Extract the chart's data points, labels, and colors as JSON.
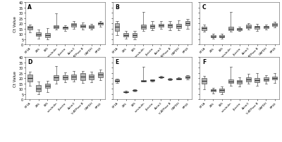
{
  "panel_labels": [
    "A",
    "B",
    "C",
    "D",
    "E",
    "F"
  ],
  "x_labels": [
    "EF1A",
    "28S",
    "18S",
    "α-tubulin",
    "β-actin",
    "Actin3",
    "V-ATPase B",
    "GAPDH",
    "RPS9"
  ],
  "ylabel": "Ct Value",
  "ylim": [
    0,
    40
  ],
  "yticks": [
    0,
    5,
    10,
    15,
    20,
    25,
    30,
    35,
    40
  ],
  "panels": {
    "A": {
      "data": [
        {
          "q1": 14.0,
          "median": 16.0,
          "q3": 17.5,
          "whislo": 11.5,
          "whishi": 18.5,
          "fliers": []
        },
        {
          "q1": 8.0,
          "median": 9.5,
          "q3": 11.5,
          "whislo": 5.5,
          "whishi": 14.0,
          "fliers": []
        },
        {
          "q1": 7.0,
          "median": 8.5,
          "q3": 10.5,
          "whislo": 4.5,
          "whishi": 15.5,
          "fliers": []
        },
        {
          "q1": 15.5,
          "median": 17.0,
          "q3": 18.0,
          "whislo": 14.0,
          "whishi": 29.5,
          "fliers": []
        },
        {
          "q1": 14.5,
          "median": 16.0,
          "q3": 17.0,
          "whislo": 13.0,
          "whishi": 18.0,
          "fliers": []
        },
        {
          "q1": 16.5,
          "median": 18.5,
          "q3": 20.0,
          "whislo": 15.0,
          "whishi": 22.0,
          "fliers": []
        },
        {
          "q1": 16.0,
          "median": 17.5,
          "q3": 19.0,
          "whislo": 14.0,
          "whishi": 20.5,
          "fliers": []
        },
        {
          "q1": 15.5,
          "median": 17.0,
          "q3": 18.0,
          "whislo": 14.0,
          "whishi": 19.5,
          "fliers": []
        },
        {
          "q1": 18.5,
          "median": 20.0,
          "q3": 21.0,
          "whislo": 17.0,
          "whishi": 22.0,
          "fliers": []
        }
      ]
    },
    "B": {
      "data": [
        {
          "q1": 13.0,
          "median": 16.5,
          "q3": 20.0,
          "whislo": 9.0,
          "whishi": 22.0,
          "fliers": []
        },
        {
          "q1": 7.5,
          "median": 9.0,
          "q3": 10.5,
          "whislo": 5.5,
          "whishi": 13.0,
          "fliers": []
        },
        {
          "q1": 7.0,
          "median": 8.5,
          "q3": 10.5,
          "whislo": 5.0,
          "whishi": 13.0,
          "fliers": []
        },
        {
          "q1": 15.0,
          "median": 17.0,
          "q3": 19.0,
          "whislo": 13.0,
          "whishi": 31.0,
          "fliers": []
        },
        {
          "q1": 15.5,
          "median": 17.5,
          "q3": 19.0,
          "whislo": 13.5,
          "whishi": 22.0,
          "fliers": []
        },
        {
          "q1": 16.5,
          "median": 18.0,
          "q3": 19.5,
          "whislo": 14.5,
          "whishi": 22.0,
          "fliers": []
        },
        {
          "q1": 16.0,
          "median": 18.0,
          "q3": 19.5,
          "whislo": 13.5,
          "whishi": 22.0,
          "fliers": []
        },
        {
          "q1": 15.5,
          "median": 17.5,
          "q3": 19.5,
          "whislo": 13.5,
          "whishi": 22.5,
          "fliers": []
        },
        {
          "q1": 18.0,
          "median": 20.0,
          "q3": 22.0,
          "whislo": 15.0,
          "whishi": 24.0,
          "fliers": []
        }
      ]
    },
    "C": {
      "data": [
        {
          "q1": 13.5,
          "median": 15.5,
          "q3": 17.0,
          "whislo": 12.0,
          "whishi": 18.5,
          "fliers": []
        },
        {
          "q1": 6.5,
          "median": 7.5,
          "q3": 8.5,
          "whislo": 5.5,
          "whishi": 10.0,
          "fliers": []
        },
        {
          "q1": 6.5,
          "median": 7.5,
          "q3": 8.5,
          "whislo": 5.5,
          "whishi": 10.0,
          "fliers": []
        },
        {
          "q1": 13.5,
          "median": 15.0,
          "q3": 16.5,
          "whislo": 12.0,
          "whishi": 31.0,
          "fliers": []
        },
        {
          "q1": 13.5,
          "median": 14.5,
          "q3": 15.5,
          "whislo": 12.5,
          "whishi": 16.5,
          "fliers": []
        },
        {
          "q1": 15.5,
          "median": 17.0,
          "q3": 18.5,
          "whislo": 14.0,
          "whishi": 20.0,
          "fliers": []
        },
        {
          "q1": 15.0,
          "median": 16.5,
          "q3": 17.5,
          "whislo": 13.0,
          "whishi": 19.5,
          "fliers": []
        },
        {
          "q1": 15.5,
          "median": 16.5,
          "q3": 17.5,
          "whislo": 14.0,
          "whishi": 19.0,
          "fliers": []
        },
        {
          "q1": 17.5,
          "median": 19.0,
          "q3": 20.0,
          "whislo": 16.0,
          "whishi": 21.5,
          "fliers": []
        }
      ]
    },
    "D": {
      "data": [
        {
          "q1": 17.0,
          "median": 20.0,
          "q3": 23.5,
          "whislo": 13.0,
          "whishi": 26.0,
          "fliers": []
        },
        {
          "q1": 7.5,
          "median": 10.0,
          "q3": 13.5,
          "whislo": 4.5,
          "whishi": 17.0,
          "fliers": []
        },
        {
          "q1": 10.5,
          "median": 13.0,
          "q3": 15.0,
          "whislo": 7.0,
          "whishi": 17.5,
          "fliers": []
        },
        {
          "q1": 18.0,
          "median": 20.5,
          "q3": 22.5,
          "whislo": 14.5,
          "whishi": 31.5,
          "fliers": []
        },
        {
          "q1": 18.5,
          "median": 20.5,
          "q3": 22.5,
          "whislo": 16.0,
          "whishi": 25.5,
          "fliers": []
        },
        {
          "q1": 19.0,
          "median": 21.5,
          "q3": 23.5,
          "whislo": 16.5,
          "whishi": 26.5,
          "fliers": []
        },
        {
          "q1": 18.0,
          "median": 21.5,
          "q3": 24.5,
          "whislo": 15.5,
          "whishi": 27.0,
          "fliers": []
        },
        {
          "q1": 19.0,
          "median": 21.5,
          "q3": 23.5,
          "whislo": 16.0,
          "whishi": 26.0,
          "fliers": []
        },
        {
          "q1": 21.0,
          "median": 23.5,
          "q3": 25.5,
          "whislo": 18.0,
          "whishi": 28.0,
          "fliers": []
        }
      ]
    },
    "E": {
      "data": [
        {
          "q1": 16.5,
          "median": 17.5,
          "q3": 18.5,
          "whislo": 15.5,
          "whishi": 19.5,
          "fliers": []
        },
        {
          "q1": 6.5,
          "median": 7.0,
          "q3": 7.5,
          "whislo": 6.0,
          "whishi": 8.0,
          "fliers": []
        },
        {
          "q1": 8.0,
          "median": 8.5,
          "q3": 9.0,
          "whislo": 7.5,
          "whishi": 9.5,
          "fliers": []
        },
        {
          "q1": 17.0,
          "median": 17.5,
          "q3": 18.0,
          "whislo": 16.5,
          "whishi": 31.0,
          "fliers": []
        },
        {
          "q1": 17.5,
          "median": 18.0,
          "q3": 18.5,
          "whislo": 17.0,
          "whishi": 19.0,
          "fliers": []
        },
        {
          "q1": 20.5,
          "median": 21.0,
          "q3": 21.5,
          "whislo": 20.0,
          "whishi": 22.0,
          "fliers": []
        },
        {
          "q1": 18.5,
          "median": 19.0,
          "q3": 19.5,
          "whislo": 18.0,
          "whishi": 20.0,
          "fliers": []
        },
        {
          "q1": 19.0,
          "median": 19.5,
          "q3": 20.0,
          "whislo": 18.5,
          "whishi": 20.5,
          "fliers": []
        },
        {
          "q1": 20.0,
          "median": 21.0,
          "q3": 22.0,
          "whislo": 19.0,
          "whishi": 23.0,
          "fliers": []
        }
      ]
    },
    "F": {
      "data": [
        {
          "q1": 14.5,
          "median": 17.5,
          "q3": 20.0,
          "whislo": 9.5,
          "whishi": 22.0,
          "fliers": []
        },
        {
          "q1": 7.5,
          "median": 8.5,
          "q3": 9.5,
          "whislo": 5.5,
          "whishi": 11.0,
          "fliers": []
        },
        {
          "q1": 7.0,
          "median": 8.5,
          "q3": 10.0,
          "whislo": 5.0,
          "whishi": 12.0,
          "fliers": []
        },
        {
          "q1": 15.5,
          "median": 17.0,
          "q3": 19.0,
          "whislo": 13.0,
          "whishi": 31.0,
          "fliers": []
        },
        {
          "q1": 15.0,
          "median": 16.5,
          "q3": 18.0,
          "whislo": 12.0,
          "whishi": 21.0,
          "fliers": []
        },
        {
          "q1": 17.0,
          "median": 19.0,
          "q3": 21.0,
          "whislo": 14.5,
          "whishi": 24.0,
          "fliers": []
        },
        {
          "q1": 16.0,
          "median": 18.0,
          "q3": 20.0,
          "whislo": 13.0,
          "whishi": 24.5,
          "fliers": []
        },
        {
          "q1": 17.5,
          "median": 19.0,
          "q3": 20.5,
          "whislo": 14.5,
          "whishi": 23.0,
          "fliers": []
        },
        {
          "q1": 18.5,
          "median": 20.0,
          "q3": 21.5,
          "whislo": 15.5,
          "whishi": 25.0,
          "fliers": []
        }
      ]
    }
  }
}
